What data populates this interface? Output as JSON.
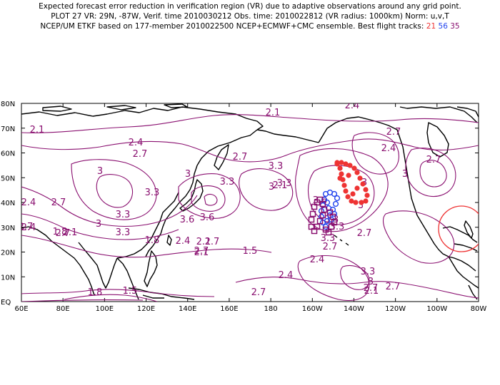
{
  "title": {
    "line1": "Expected forecast error reduction in verification region (VR) due to adaptive observations around any grid point.",
    "line2": "PLOT 27 VR: 29N, -87W, Verif. time 2010030212 Obs. time: 2010022812 (VR radius: 1000km) Norm: u,v,T",
    "line3_prefix": "NCEP/UM ETKF based on 177-member 2010022500 NCEP+ECMWF+CMC ensemble. Best flight tracks:",
    "tracks": [
      {
        "label": "21",
        "color": "#ee3333"
      },
      {
        "label": "56",
        "color": "#2244ee"
      },
      {
        "label": "35",
        "color": "#8a1070"
      }
    ]
  },
  "colors": {
    "contour": "#8a1070",
    "land": "#000000",
    "track_red": "#ee3333",
    "track_blue": "#2244ee",
    "track_purple": "#8a1070",
    "verification_circle": "#ee3333"
  },
  "axes": {
    "lon_labels": [
      "60E",
      "80E",
      "100E",
      "120E",
      "140E",
      "160E",
      "180",
      "160W",
      "140W",
      "120W",
      "100W",
      "80W"
    ],
    "lat_labels": [
      "EQ",
      "10N",
      "20N",
      "30N",
      "40N",
      "50N",
      "60N",
      "70N",
      "80N"
    ]
  },
  "contour_labels": [
    "2.1",
    "2.4",
    "2.7",
    "3",
    "3.3",
    "3.6",
    "2.4",
    "2.7",
    "3",
    "3.3",
    "3.6",
    "3.3",
    "3.3",
    "3",
    "2.7",
    "2.4",
    "2.1",
    "1.8",
    "1.5",
    "1.8",
    "2.1",
    "2.4",
    "2.7",
    "2.4",
    "2.7",
    "3",
    "3.3",
    "2.7",
    "2.1",
    "1.5",
    "2.7",
    "2.1",
    "3.3",
    "3",
    "2.7",
    "2.4",
    "2.7",
    "3.6",
    "3.3",
    "3",
    "2.7",
    "2.7",
    "2.4",
    "3",
    "3.3",
    "2.4",
    "2.7",
    "3",
    "3.3",
    "2.1",
    "2.7",
    "3.3",
    "2.1",
    "2.7",
    "1.8"
  ],
  "verification_region": {
    "lat": 29,
    "lon": -87,
    "radius_km": 1000
  }
}
